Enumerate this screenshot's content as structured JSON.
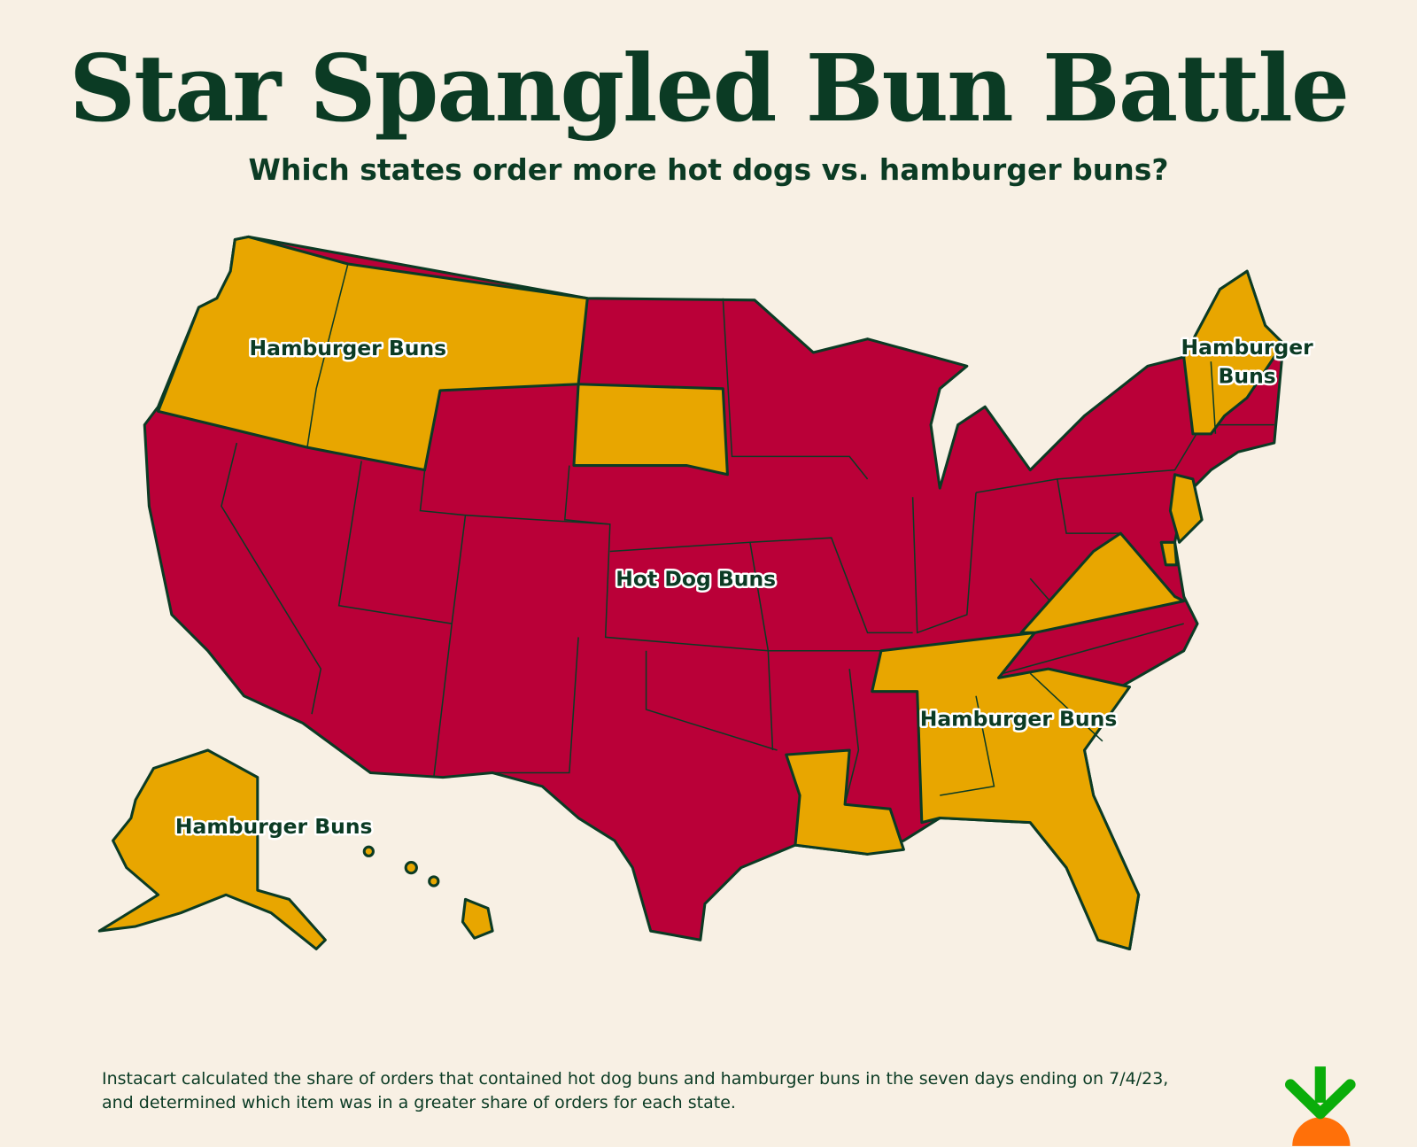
{
  "header": {
    "title": "Star Spangled Bun Battle",
    "subtitle": "Which states order more hot dogs vs. hamburger buns?"
  },
  "map": {
    "labels": [
      "Hamburger Buns",
      "Hamburger",
      "Buns",
      "Hot Dog Buns",
      "Hamburger Buns",
      "Hamburger Buns"
    ]
  },
  "footnote": [
    "Instacart calculated the share of orders that contained hot dog buns and hamburger buns in the seven days ending on 7/4/23,",
    "and determined which item was in a greater share of orders for each state."
  ]
}
